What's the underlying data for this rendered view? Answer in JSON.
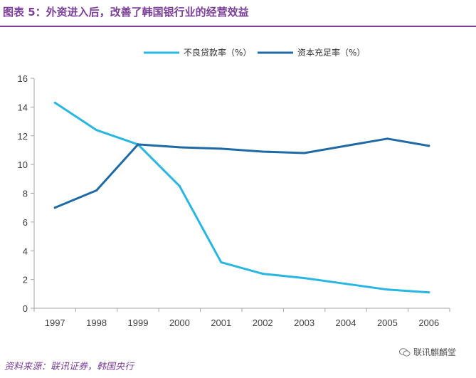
{
  "header": {
    "title": "图表 5：外资进入后，改善了韩国银行业的经营效益"
  },
  "footer": {
    "source": "资料来源：联讯证券，韩国央行",
    "watermark": "联讯麒麟堂",
    "watermark_icon": "wechat-icon"
  },
  "colors": {
    "accent": "#7B3F98",
    "npl": "#29B6E0",
    "car": "#1F6AA5",
    "axis": "#A6A6A6"
  },
  "chart_data": {
    "type": "line",
    "x": [
      "1997",
      "1998",
      "1999",
      "2000",
      "2001",
      "2002",
      "2003",
      "2004",
      "2005",
      "2006"
    ],
    "series": [
      {
        "name": "不良贷款率（%）",
        "values": [
          14.3,
          12.4,
          11.4,
          8.5,
          3.2,
          2.4,
          2.1,
          1.7,
          1.3,
          1.1
        ]
      },
      {
        "name": "资本充足率（%）",
        "values": [
          7.0,
          8.2,
          11.4,
          11.2,
          11.1,
          10.9,
          10.8,
          11.3,
          11.8,
          11.3
        ]
      }
    ],
    "ylim": [
      0,
      16
    ],
    "yticks": [
      0,
      2,
      4,
      6,
      8,
      10,
      12,
      14,
      16
    ],
    "grid": false,
    "legend": "top"
  }
}
